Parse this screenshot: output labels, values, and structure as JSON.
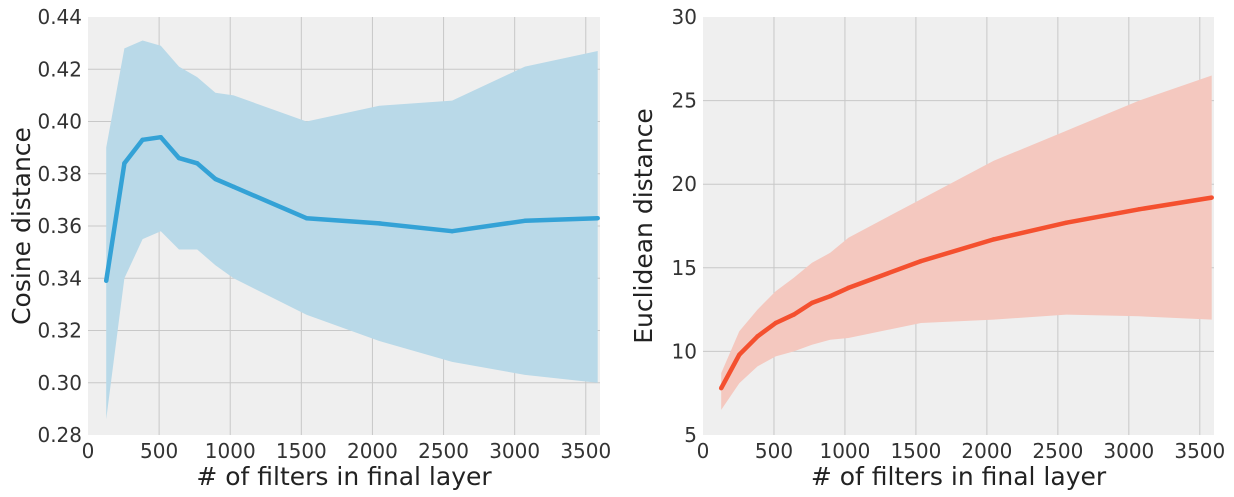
{
  "chart_data": [
    {
      "type": "line",
      "xlabel": "# of filters in final layer",
      "ylabel": "Cosine distance",
      "xlim": [
        0,
        3600
      ],
      "ylim": [
        0.28,
        0.44
      ],
      "xticks": [
        0,
        500,
        1000,
        1500,
        2000,
        2500,
        3000,
        3500
      ],
      "xtick_labels": [
        "0",
        "500",
        "1000",
        "1500",
        "2000",
        "2500",
        "3000",
        "3500"
      ],
      "yticks": [
        0.28,
        0.3,
        0.32,
        0.34,
        0.36,
        0.38,
        0.4,
        0.42,
        0.44
      ],
      "ytick_labels": [
        "0.28",
        "0.30",
        "0.32",
        "0.34",
        "0.36",
        "0.38",
        "0.40",
        "0.42",
        "0.44"
      ],
      "grid": true,
      "background_color": "#efefef",
      "grid_color": "#c8c8c8",
      "series": [
        {
          "color": "#34a2d6",
          "band_color": "#b9d9e8",
          "x": [
            128,
            256,
            384,
            512,
            640,
            768,
            896,
            1024,
            1536,
            2048,
            2560,
            3072,
            3584
          ],
          "y": [
            0.339,
            0.384,
            0.393,
            0.394,
            0.386,
            0.384,
            0.378,
            0.375,
            0.363,
            0.361,
            0.358,
            0.362,
            0.363
          ],
          "upper": [
            0.39,
            0.428,
            0.431,
            0.429,
            0.421,
            0.417,
            0.411,
            0.41,
            0.4,
            0.406,
            0.408,
            0.421,
            0.427
          ],
          "lower": [
            0.286,
            0.34,
            0.355,
            0.358,
            0.351,
            0.351,
            0.345,
            0.34,
            0.326,
            0.316,
            0.308,
            0.303,
            0.3
          ]
        }
      ]
    },
    {
      "type": "line",
      "xlabel": "# of filters in final layer",
      "ylabel": "Euclidean distance",
      "xlim": [
        0,
        3600
      ],
      "ylim": [
        5,
        30
      ],
      "xticks": [
        0,
        500,
        1000,
        1500,
        2000,
        2500,
        3000,
        3500
      ],
      "xtick_labels": [
        "0",
        "500",
        "1000",
        "1500",
        "2000",
        "2500",
        "3000",
        "3500"
      ],
      "yticks": [
        5,
        10,
        15,
        20,
        25,
        30
      ],
      "ytick_labels": [
        "5",
        "10",
        "15",
        "20",
        "25",
        "30"
      ],
      "grid": true,
      "background_color": "#efefef",
      "grid_color": "#c8c8c8",
      "series": [
        {
          "color": "#f4502f",
          "band_color": "#f4c8bf",
          "x": [
            128,
            256,
            384,
            512,
            640,
            768,
            896,
            1024,
            1536,
            2048,
            2560,
            3072,
            3584
          ],
          "y": [
            7.8,
            9.8,
            10.9,
            11.7,
            12.2,
            12.9,
            13.3,
            13.8,
            15.4,
            16.7,
            17.7,
            18.5,
            19.2
          ],
          "upper": [
            8.7,
            11.2,
            12.5,
            13.6,
            14.4,
            15.3,
            15.9,
            16.8,
            19.1,
            21.4,
            23.2,
            25.0,
            26.5
          ],
          "lower": [
            6.5,
            8.1,
            9.1,
            9.7,
            10.0,
            10.4,
            10.7,
            10.8,
            11.7,
            11.9,
            12.2,
            12.1,
            11.9
          ]
        }
      ]
    }
  ]
}
